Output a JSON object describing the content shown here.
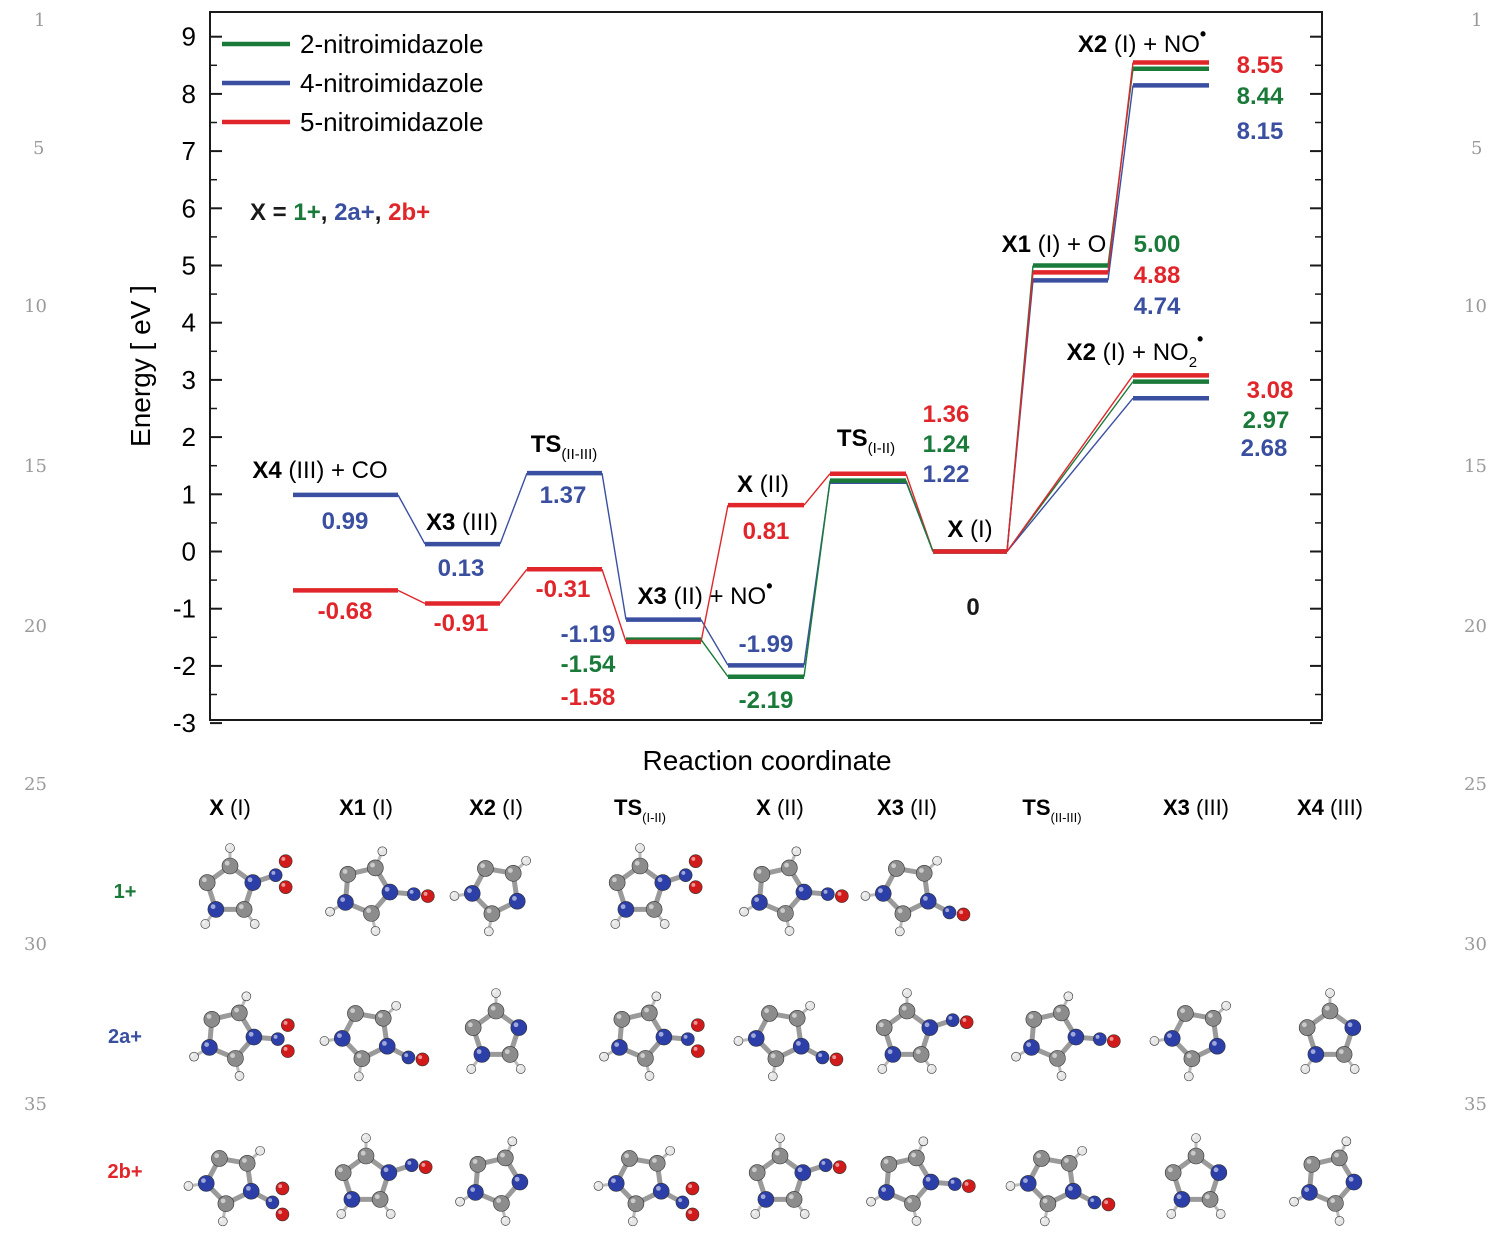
{
  "margin_numbers": [
    "1",
    "5",
    "10",
    "15",
    "20",
    "25",
    "30",
    "35"
  ],
  "colors": {
    "series_2": "#1a7a3a",
    "series_4": "#3a4fa0",
    "series_5": "#e0262a",
    "axis": "#1a1a1a",
    "zero_label": "#1a1a1a"
  },
  "chart_data": {
    "type": "line",
    "xlabel": "Reaction coordinate",
    "ylabel": "Energy [ eV ]",
    "ylim": [
      -3,
      9.5
    ],
    "yticks": [
      "-3",
      "-2",
      "-1",
      "0",
      "1",
      "2",
      "3",
      "4",
      "5",
      "6",
      "7",
      "8",
      "9"
    ],
    "ytick_values": [
      -3,
      -2,
      -1,
      0,
      1,
      2,
      3,
      4,
      5,
      6,
      7,
      8,
      9
    ],
    "grid": false,
    "legend_position": "top-left",
    "x_formula": {
      "prefix": "X = ",
      "parts": [
        "1+",
        "2a+",
        "2b+"
      ],
      "separator": ", "
    },
    "series": [
      {
        "name": "2-nitroimidazole",
        "color_key": "series_2"
      },
      {
        "name": "4-nitroimidazole",
        "color_key": "series_4"
      },
      {
        "name": "5-nitroimidazole",
        "color_key": "series_5"
      }
    ],
    "states": [
      {
        "id": "X4III",
        "label_bold": "X4",
        "label_rest": " (III) + CO",
        "values": [
          null,
          0.99,
          -0.68
        ]
      },
      {
        "id": "X3III",
        "label_bold": "X3",
        "label_rest": " (III)",
        "values": [
          null,
          0.13,
          -0.91
        ]
      },
      {
        "id": "TSIIIII",
        "label_bold": "TS",
        "label_sub": "(II-III)",
        "label_rest": "",
        "values": [
          null,
          1.37,
          -0.31
        ]
      },
      {
        "id": "X3II",
        "label_bold": "X3",
        "label_rest": " (II) + NO",
        "label_sup": "•",
        "values": [
          -1.54,
          -1.19,
          -1.58
        ]
      },
      {
        "id": "XII",
        "label_bold": "X",
        "label_rest": " (II)",
        "values": [
          -2.19,
          -1.99,
          0.81
        ]
      },
      {
        "id": "TSIII",
        "label_bold": "TS",
        "label_sub": "(I-II)",
        "label_rest": "",
        "values": [
          1.24,
          1.22,
          1.36
        ]
      },
      {
        "id": "XI",
        "label_bold": "X",
        "label_rest": " (I)",
        "values": [
          0,
          0,
          0
        ]
      },
      {
        "id": "X1I",
        "label_bold": "X1",
        "label_rest": " (I) + O",
        "values": [
          5.0,
          4.74,
          4.88
        ]
      },
      {
        "id": "X2INO2",
        "label_bold": "X2",
        "label_rest": " (I) + NO",
        "label_sub": "2",
        "label_sup": "•",
        "values": [
          2.97,
          2.68,
          3.08
        ]
      },
      {
        "id": "X2INO",
        "label_bold": "X2",
        "label_rest": " (I) + NO",
        "label_sup": "•",
        "values": [
          8.44,
          8.15,
          8.55
        ]
      }
    ],
    "connections": [
      {
        "series": 1,
        "path": [
          "X4III",
          "X3III",
          "TSIIIII",
          "X3II",
          "XII",
          "TSIII",
          "XI"
        ]
      },
      {
        "series": 2,
        "path": [
          "X4III",
          "X3III",
          "TSIIIII",
          "X3II",
          "XII",
          "TSIII",
          "XI"
        ]
      },
      {
        "series": 0,
        "path": [
          "X3II",
          "XII",
          "TSIII",
          "XI"
        ]
      },
      {
        "series": 0,
        "path": [
          "XI",
          "X1I"
        ]
      },
      {
        "series": 1,
        "path": [
          "XI",
          "X1I"
        ]
      },
      {
        "series": 2,
        "path": [
          "XI",
          "X1I"
        ]
      },
      {
        "series": 0,
        "path": [
          "XI",
          "X2INO2"
        ]
      },
      {
        "series": 1,
        "path": [
          "XI",
          "X2INO2"
        ]
      },
      {
        "series": 2,
        "path": [
          "XI",
          "X2INO2"
        ]
      },
      {
        "series": 0,
        "path": [
          "X1I",
          "X2INO"
        ]
      },
      {
        "series": 1,
        "path": [
          "X1I",
          "X2INO"
        ]
      },
      {
        "series": 2,
        "path": [
          "X1I",
          "X2INO"
        ]
      }
    ],
    "value_labels": [
      {
        "text": "8.55",
        "series": 2
      },
      {
        "text": "8.44",
        "series": 0
      },
      {
        "text": "8.15",
        "series": 1
      },
      {
        "text": "5.00",
        "series": 0
      },
      {
        "text": "4.88",
        "series": 2
      },
      {
        "text": "4.74",
        "series": 1
      },
      {
        "text": "3.08",
        "series": 2
      },
      {
        "text": "2.97",
        "series": 0
      },
      {
        "text": "2.68",
        "series": 1
      },
      {
        "text": "1.36",
        "series": 2
      },
      {
        "text": "1.24",
        "series": 0
      },
      {
        "text": "1.22",
        "series": 1
      },
      {
        "text": "0",
        "series": -1
      },
      {
        "text": "0.81",
        "series": 2
      },
      {
        "text": "-1.99",
        "series": 1
      },
      {
        "text": "-2.19",
        "series": 0
      },
      {
        "text": "-1.19",
        "series": 1
      },
      {
        "text": "-1.54",
        "series": 0
      },
      {
        "text": "-1.58",
        "series": 2
      },
      {
        "text": "1.37",
        "series": 1
      },
      {
        "text": "-0.31",
        "series": 2
      },
      {
        "text": "0.13",
        "series": 1
      },
      {
        "text": "-0.91",
        "series": 2
      },
      {
        "text": "0.99",
        "series": 1
      },
      {
        "text": "-0.68",
        "series": 2
      }
    ]
  },
  "structures": {
    "columns": [
      {
        "bold": "X",
        "rest": " (I)"
      },
      {
        "bold": "X1",
        "rest": " (I)"
      },
      {
        "bold": "X2",
        "rest": " (I)"
      },
      {
        "bold": "TS",
        "sub": "(I-II)",
        "rest": ""
      },
      {
        "bold": "X",
        "rest": " (II)"
      },
      {
        "bold": "X3",
        "rest": " (II)"
      },
      {
        "bold": "TS",
        "sub": "(II-III)",
        "rest": ""
      },
      {
        "bold": "X3",
        "rest": " (III)"
      },
      {
        "bold": "X4",
        "rest": " (III)"
      }
    ],
    "rows": [
      {
        "label": "1+",
        "color_key": "series_2",
        "count": 6
      },
      {
        "label": "2a+",
        "color_key": "series_4",
        "count": 9
      },
      {
        "label": "2b+",
        "color_key": "series_5",
        "count": 9
      }
    ],
    "atom_colors": {
      "carbon": "#8c8c8c",
      "nitrogen": "#2c3fa8",
      "oxygen": "#d11a1a",
      "hydrogen": "#e6e6e6"
    }
  }
}
